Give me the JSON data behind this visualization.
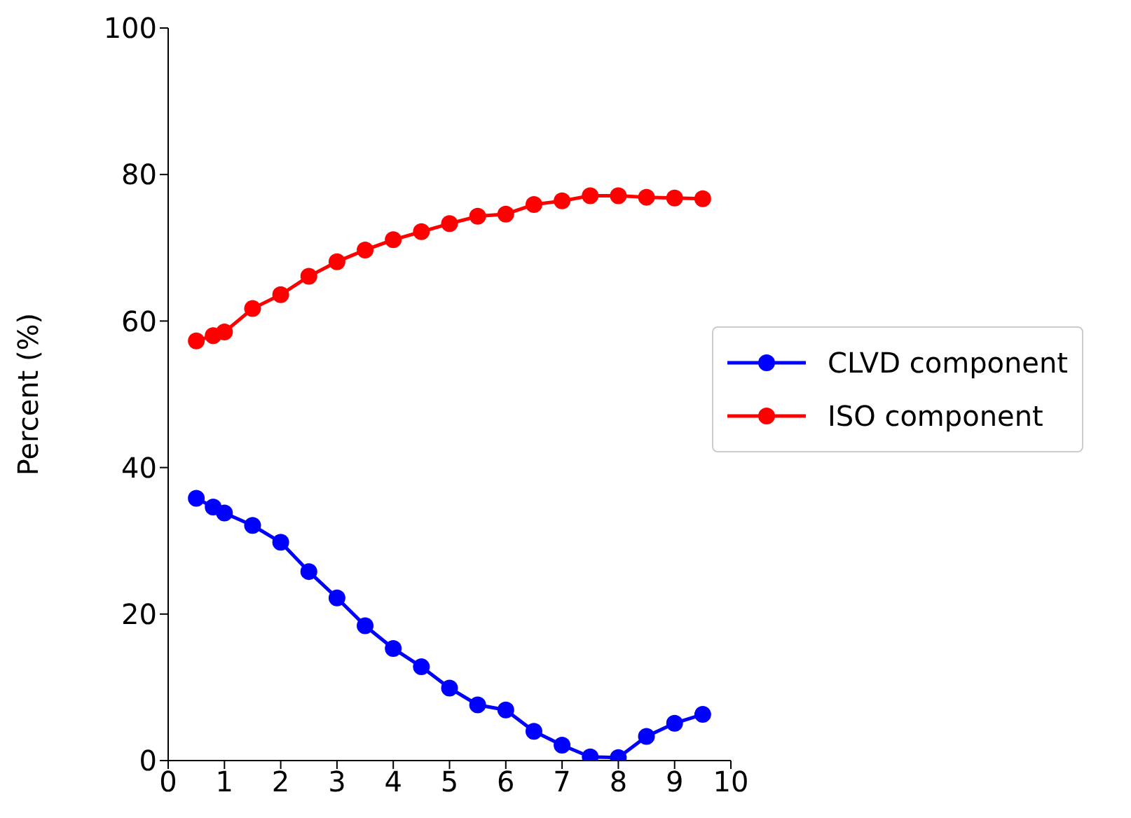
{
  "chart_data": {
    "type": "line",
    "ylabel": "Percent (%)",
    "x": [
      0.5,
      0.8,
      1,
      1.5,
      2,
      2.5,
      3,
      3.5,
      4,
      4.5,
      5,
      5.5,
      6,
      6.5,
      7,
      7.5,
      8,
      8.5,
      9,
      9.5
    ],
    "series": [
      {
        "name": "ISO component",
        "color": "#ff0000",
        "values": [
          57.3,
          58,
          58.5,
          61.7,
          63.6,
          66.1,
          68.1,
          69.7,
          71.1,
          72.2,
          73.3,
          74.3,
          74.6,
          75.9,
          76.4,
          77.1,
          77.1,
          76.9,
          76.8,
          76.7
        ]
      },
      {
        "name": "CLVD component",
        "color": "#0000ff",
        "values": [
          35.8,
          34.6,
          33.8,
          32.1,
          29.8,
          25.8,
          22.2,
          18.4,
          15.3,
          12.8,
          9.9,
          7.6,
          6.9,
          4.0,
          2.1,
          0.5,
          0.4,
          3.3,
          5.1,
          6.3
        ]
      }
    ],
    "xlim": [
      0,
      10
    ],
    "xticks": [
      0,
      1,
      2,
      3,
      4,
      5,
      6,
      7,
      8,
      9,
      10
    ],
    "ylim": [
      0,
      100
    ],
    "yticks": [
      0,
      20,
      40,
      60,
      80,
      100
    ],
    "grid": false,
    "legend": "center right",
    "marker": "circle",
    "line_style": "solid"
  }
}
